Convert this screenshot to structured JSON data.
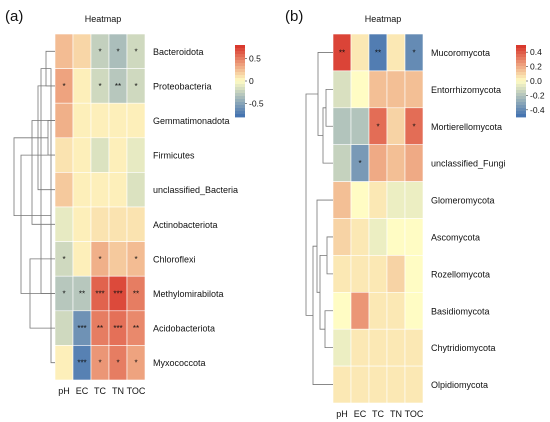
{
  "chart_data": [
    {
      "type": "heatmap",
      "panel_label": "(a)",
      "title": "Heatmap",
      "columns": [
        "pH",
        "EC",
        "TC",
        "TN",
        "TOC"
      ],
      "rows": [
        "Bacteroidota",
        "Proteobacteria",
        "Gemmatimonadota",
        "Firmicutes",
        "unclassified_Bacteria",
        "Actinobacteriota",
        "Chloroflexi",
        "Methylomirabilota",
        "Acidobacteriota",
        "Myxococcota"
      ],
      "values": [
        [
          0.25,
          0.15,
          -0.25,
          -0.35,
          -0.2
        ],
        [
          0.35,
          0.05,
          -0.2,
          -0.3,
          -0.2
        ],
        [
          0.3,
          0.05,
          0.05,
          0.05,
          0.05
        ],
        [
          0.1,
          0.05,
          -0.15,
          0.05,
          -0.1
        ],
        [
          0.2,
          0.05,
          0.05,
          0.05,
          -0.15
        ],
        [
          -0.1,
          0.05,
          0.1,
          0.1,
          0.1
        ],
        [
          -0.2,
          0.05,
          0.3,
          0.2,
          0.25
        ],
        [
          -0.3,
          -0.3,
          0.6,
          0.7,
          0.5
        ],
        [
          -0.2,
          -0.6,
          0.5,
          0.55,
          0.45
        ],
        [
          0.05,
          -0.7,
          0.4,
          0.5,
          0.35
        ]
      ],
      "significance": [
        [
          "",
          "",
          "*",
          "*",
          "*"
        ],
        [
          "*",
          "",
          "*",
          "**",
          "*"
        ],
        [
          "",
          "",
          "",
          "",
          ""
        ],
        [
          "",
          "",
          "",
          "",
          ""
        ],
        [
          "",
          "",
          "",
          "",
          ""
        ],
        [
          "",
          "",
          "",
          "",
          ""
        ],
        [
          "*",
          "",
          "*",
          "",
          "*"
        ],
        [
          "*",
          "**",
          "***",
          "***",
          "**"
        ],
        [
          "",
          "***",
          "**",
          "***",
          "**"
        ],
        [
          "",
          "***",
          "*",
          "*",
          "*"
        ]
      ],
      "legend_ticks": [
        0.5,
        0,
        -0.5
      ],
      "vlim": [
        -0.8,
        0.8
      ]
    },
    {
      "type": "heatmap",
      "panel_label": "(b)",
      "title": "Heatmap",
      "columns": [
        "pH",
        "EC",
        "TC",
        "TN",
        "TOC"
      ],
      "rows": [
        "Mucoromycota",
        "Entorrhizomycota",
        "Mortierellomycota",
        "unclassified_Fungi",
        "Glomeromycota",
        "Ascomycota",
        "Rozellomycota",
        "Basidiomycota",
        "Chytridiomycota",
        "Olpidiomycota"
      ],
      "values": [
        [
          0.45,
          0.05,
          -0.45,
          0.05,
          -0.4
        ],
        [
          -0.1,
          0.0,
          0.15,
          0.15,
          0.15
        ],
        [
          -0.2,
          -0.2,
          0.35,
          0.1,
          0.35
        ],
        [
          -0.15,
          -0.35,
          0.2,
          0.15,
          0.2
        ],
        [
          0.15,
          0.0,
          0.05,
          -0.05,
          -0.05
        ],
        [
          0.1,
          0.05,
          -0.05,
          0.0,
          0.0
        ],
        [
          0.05,
          0.05,
          0.05,
          0.1,
          0.0
        ],
        [
          0.0,
          0.25,
          0.05,
          0.05,
          0.0
        ],
        [
          -0.05,
          0.05,
          0.05,
          0.05,
          0.05
        ],
        [
          0.05,
          0.05,
          0.05,
          0.05,
          0.05
        ]
      ],
      "significance": [
        [
          "**",
          "",
          "**",
          "",
          "*"
        ],
        [
          "",
          "",
          "",
          "",
          ""
        ],
        [
          "",
          "",
          "*",
          "",
          "*"
        ],
        [
          "",
          "*",
          "",
          "",
          ""
        ],
        [
          "",
          "",
          "",
          "",
          ""
        ],
        [
          "",
          "",
          "",
          "",
          ""
        ],
        [
          "",
          "",
          "",
          "",
          ""
        ],
        [
          "",
          "",
          "",
          "",
          ""
        ],
        [
          "",
          "",
          "",
          "",
          ""
        ],
        [
          "",
          "",
          "",
          "",
          ""
        ]
      ],
      "legend_ticks": [
        0.4,
        0.2,
        0.0,
        -0.2,
        -0.4
      ],
      "vlim": [
        -0.5,
        0.5
      ]
    }
  ],
  "colors": {
    "negative": "#3f6fb0",
    "neutral": "#fffcc4",
    "positive": "#d73027",
    "text": "#111111",
    "dendrogram": "#777777"
  }
}
